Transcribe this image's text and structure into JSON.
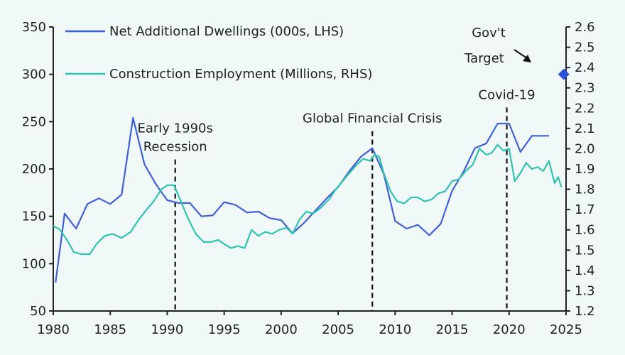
{
  "chart_data": {
    "type": "line",
    "title": "",
    "x_range": [
      1980,
      2025
    ],
    "x_ticks": [
      "1980",
      "1985",
      "1990",
      "1995",
      "2000",
      "2005",
      "2010",
      "2015",
      "2020",
      "2025"
    ],
    "y_left": {
      "range": [
        50,
        350
      ],
      "ticks": [
        "50",
        "100",
        "150",
        "200",
        "250",
        "300",
        "350"
      ]
    },
    "y_right": {
      "range": [
        1.2,
        2.6
      ],
      "ticks": [
        "1.2",
        "1.3",
        "1.4",
        "1.5",
        "1.6",
        "1.7",
        "1.8",
        "1.9",
        "2.0",
        "2.1",
        "2.2",
        "2.3",
        "2.4",
        "2.5",
        "2.6"
      ]
    },
    "series": [
      {
        "name": "Net Additional Dwellings (000s, LHS)",
        "axis": "left",
        "color": "#3f60d8",
        "points": [
          [
            1980.2,
            80
          ],
          [
            1981,
            153
          ],
          [
            1982,
            137
          ],
          [
            1983,
            163
          ],
          [
            1984,
            169
          ],
          [
            1985,
            163
          ],
          [
            1986,
            173
          ],
          [
            1987,
            254
          ],
          [
            1988,
            205
          ],
          [
            1989,
            184
          ],
          [
            1990,
            167
          ],
          [
            1991,
            164
          ],
          [
            1992,
            164
          ],
          [
            1993,
            150
          ],
          [
            1994,
            151
          ],
          [
            1995,
            165
          ],
          [
            1996,
            162
          ],
          [
            1997,
            154
          ],
          [
            1998,
            155
          ],
          [
            1999,
            148
          ],
          [
            2000,
            146
          ],
          [
            2001,
            132
          ],
          [
            2002,
            143
          ],
          [
            2003,
            156
          ],
          [
            2004,
            169
          ],
          [
            2005,
            181
          ],
          [
            2006,
            198
          ],
          [
            2007,
            213
          ],
          [
            2008,
            222
          ],
          [
            2009,
            195
          ],
          [
            2010,
            145
          ],
          [
            2011,
            137
          ],
          [
            2012,
            141
          ],
          [
            2013,
            130
          ],
          [
            2014,
            142
          ],
          [
            2015,
            177
          ],
          [
            2016,
            197
          ],
          [
            2017,
            222
          ],
          [
            2018,
            227
          ],
          [
            2019,
            248
          ],
          [
            2020,
            248
          ],
          [
            2021,
            218
          ],
          [
            2022,
            235
          ],
          [
            2023,
            235
          ],
          [
            2023.5,
            235
          ]
        ]
      },
      {
        "name": "Construction Employment (Millions, RHS)",
        "axis": "right",
        "color": "#2ec4ae",
        "points": [
          [
            1980,
            1.62
          ],
          [
            1980.6,
            1.6
          ],
          [
            1981.2,
            1.55
          ],
          [
            1981.8,
            1.49
          ],
          [
            1982.5,
            1.48
          ],
          [
            1983.2,
            1.48
          ],
          [
            1983.8,
            1.53
          ],
          [
            1984.5,
            1.57
          ],
          [
            1985.2,
            1.58
          ],
          [
            1986,
            1.56
          ],
          [
            1986.8,
            1.59
          ],
          [
            1987.5,
            1.65
          ],
          [
            1988.2,
            1.7
          ],
          [
            1988.8,
            1.74
          ],
          [
            1989.5,
            1.8
          ],
          [
            1990,
            1.82
          ],
          [
            1990.6,
            1.82
          ],
          [
            1991.2,
            1.74
          ],
          [
            1991.8,
            1.66
          ],
          [
            1992.5,
            1.58
          ],
          [
            1993.2,
            1.54
          ],
          [
            1993.8,
            1.54
          ],
          [
            1994.5,
            1.55
          ],
          [
            1995,
            1.53
          ],
          [
            1995.6,
            1.51
          ],
          [
            1996.2,
            1.52
          ],
          [
            1996.8,
            1.51
          ],
          [
            1997.4,
            1.6
          ],
          [
            1998,
            1.57
          ],
          [
            1998.6,
            1.59
          ],
          [
            1999.2,
            1.58
          ],
          [
            1999.8,
            1.6
          ],
          [
            2000.5,
            1.61
          ],
          [
            2001,
            1.58
          ],
          [
            2001.6,
            1.65
          ],
          [
            2002.2,
            1.69
          ],
          [
            2002.8,
            1.68
          ],
          [
            2003.5,
            1.71
          ],
          [
            2004.2,
            1.75
          ],
          [
            2004.8,
            1.8
          ],
          [
            2005.4,
            1.84
          ],
          [
            2006,
            1.88
          ],
          [
            2006.6,
            1.92
          ],
          [
            2007.2,
            1.95
          ],
          [
            2007.8,
            1.94
          ],
          [
            2008.2,
            1.97
          ],
          [
            2008.6,
            1.96
          ],
          [
            2009,
            1.88
          ],
          [
            2009.6,
            1.79
          ],
          [
            2010.2,
            1.74
          ],
          [
            2010.8,
            1.73
          ],
          [
            2011.4,
            1.76
          ],
          [
            2012,
            1.76
          ],
          [
            2012.6,
            1.74
          ],
          [
            2013.2,
            1.75
          ],
          [
            2013.8,
            1.78
          ],
          [
            2014.4,
            1.79
          ],
          [
            2015,
            1.84
          ],
          [
            2015.6,
            1.85
          ],
          [
            2016.2,
            1.89
          ],
          [
            2016.8,
            1.92
          ],
          [
            2017.4,
            2.0
          ],
          [
            2018,
            1.97
          ],
          [
            2018.5,
            1.98
          ],
          [
            2019,
            2.02
          ],
          [
            2019.5,
            1.99
          ],
          [
            2020,
            2.0
          ],
          [
            2020.5,
            1.84
          ],
          [
            2021,
            1.88
          ],
          [
            2021.5,
            1.93
          ],
          [
            2022,
            1.9
          ],
          [
            2022.5,
            1.91
          ],
          [
            2023,
            1.89
          ],
          [
            2023.5,
            1.94
          ],
          [
            2024,
            1.83
          ],
          [
            2024.3,
            1.86
          ],
          [
            2024.6,
            1.81
          ]
        ]
      }
    ],
    "target": {
      "label": "Gov't Target",
      "label_lines": [
        "Gov't",
        "Target"
      ],
      "x": 2024.8,
      "y": 300,
      "color": "#2b52d6"
    },
    "events": [
      {
        "label_lines": [
          "Early 1990s",
          "Recession"
        ],
        "x": 1990.7,
        "y_top": 210
      },
      {
        "label_lines": [
          "Global Financial Crisis"
        ],
        "x": 2008,
        "y_top": 240
      },
      {
        "label_lines": [
          "Covid-19"
        ],
        "x": 2019.8,
        "y_top": 265
      }
    ],
    "legend": "top-left"
  }
}
